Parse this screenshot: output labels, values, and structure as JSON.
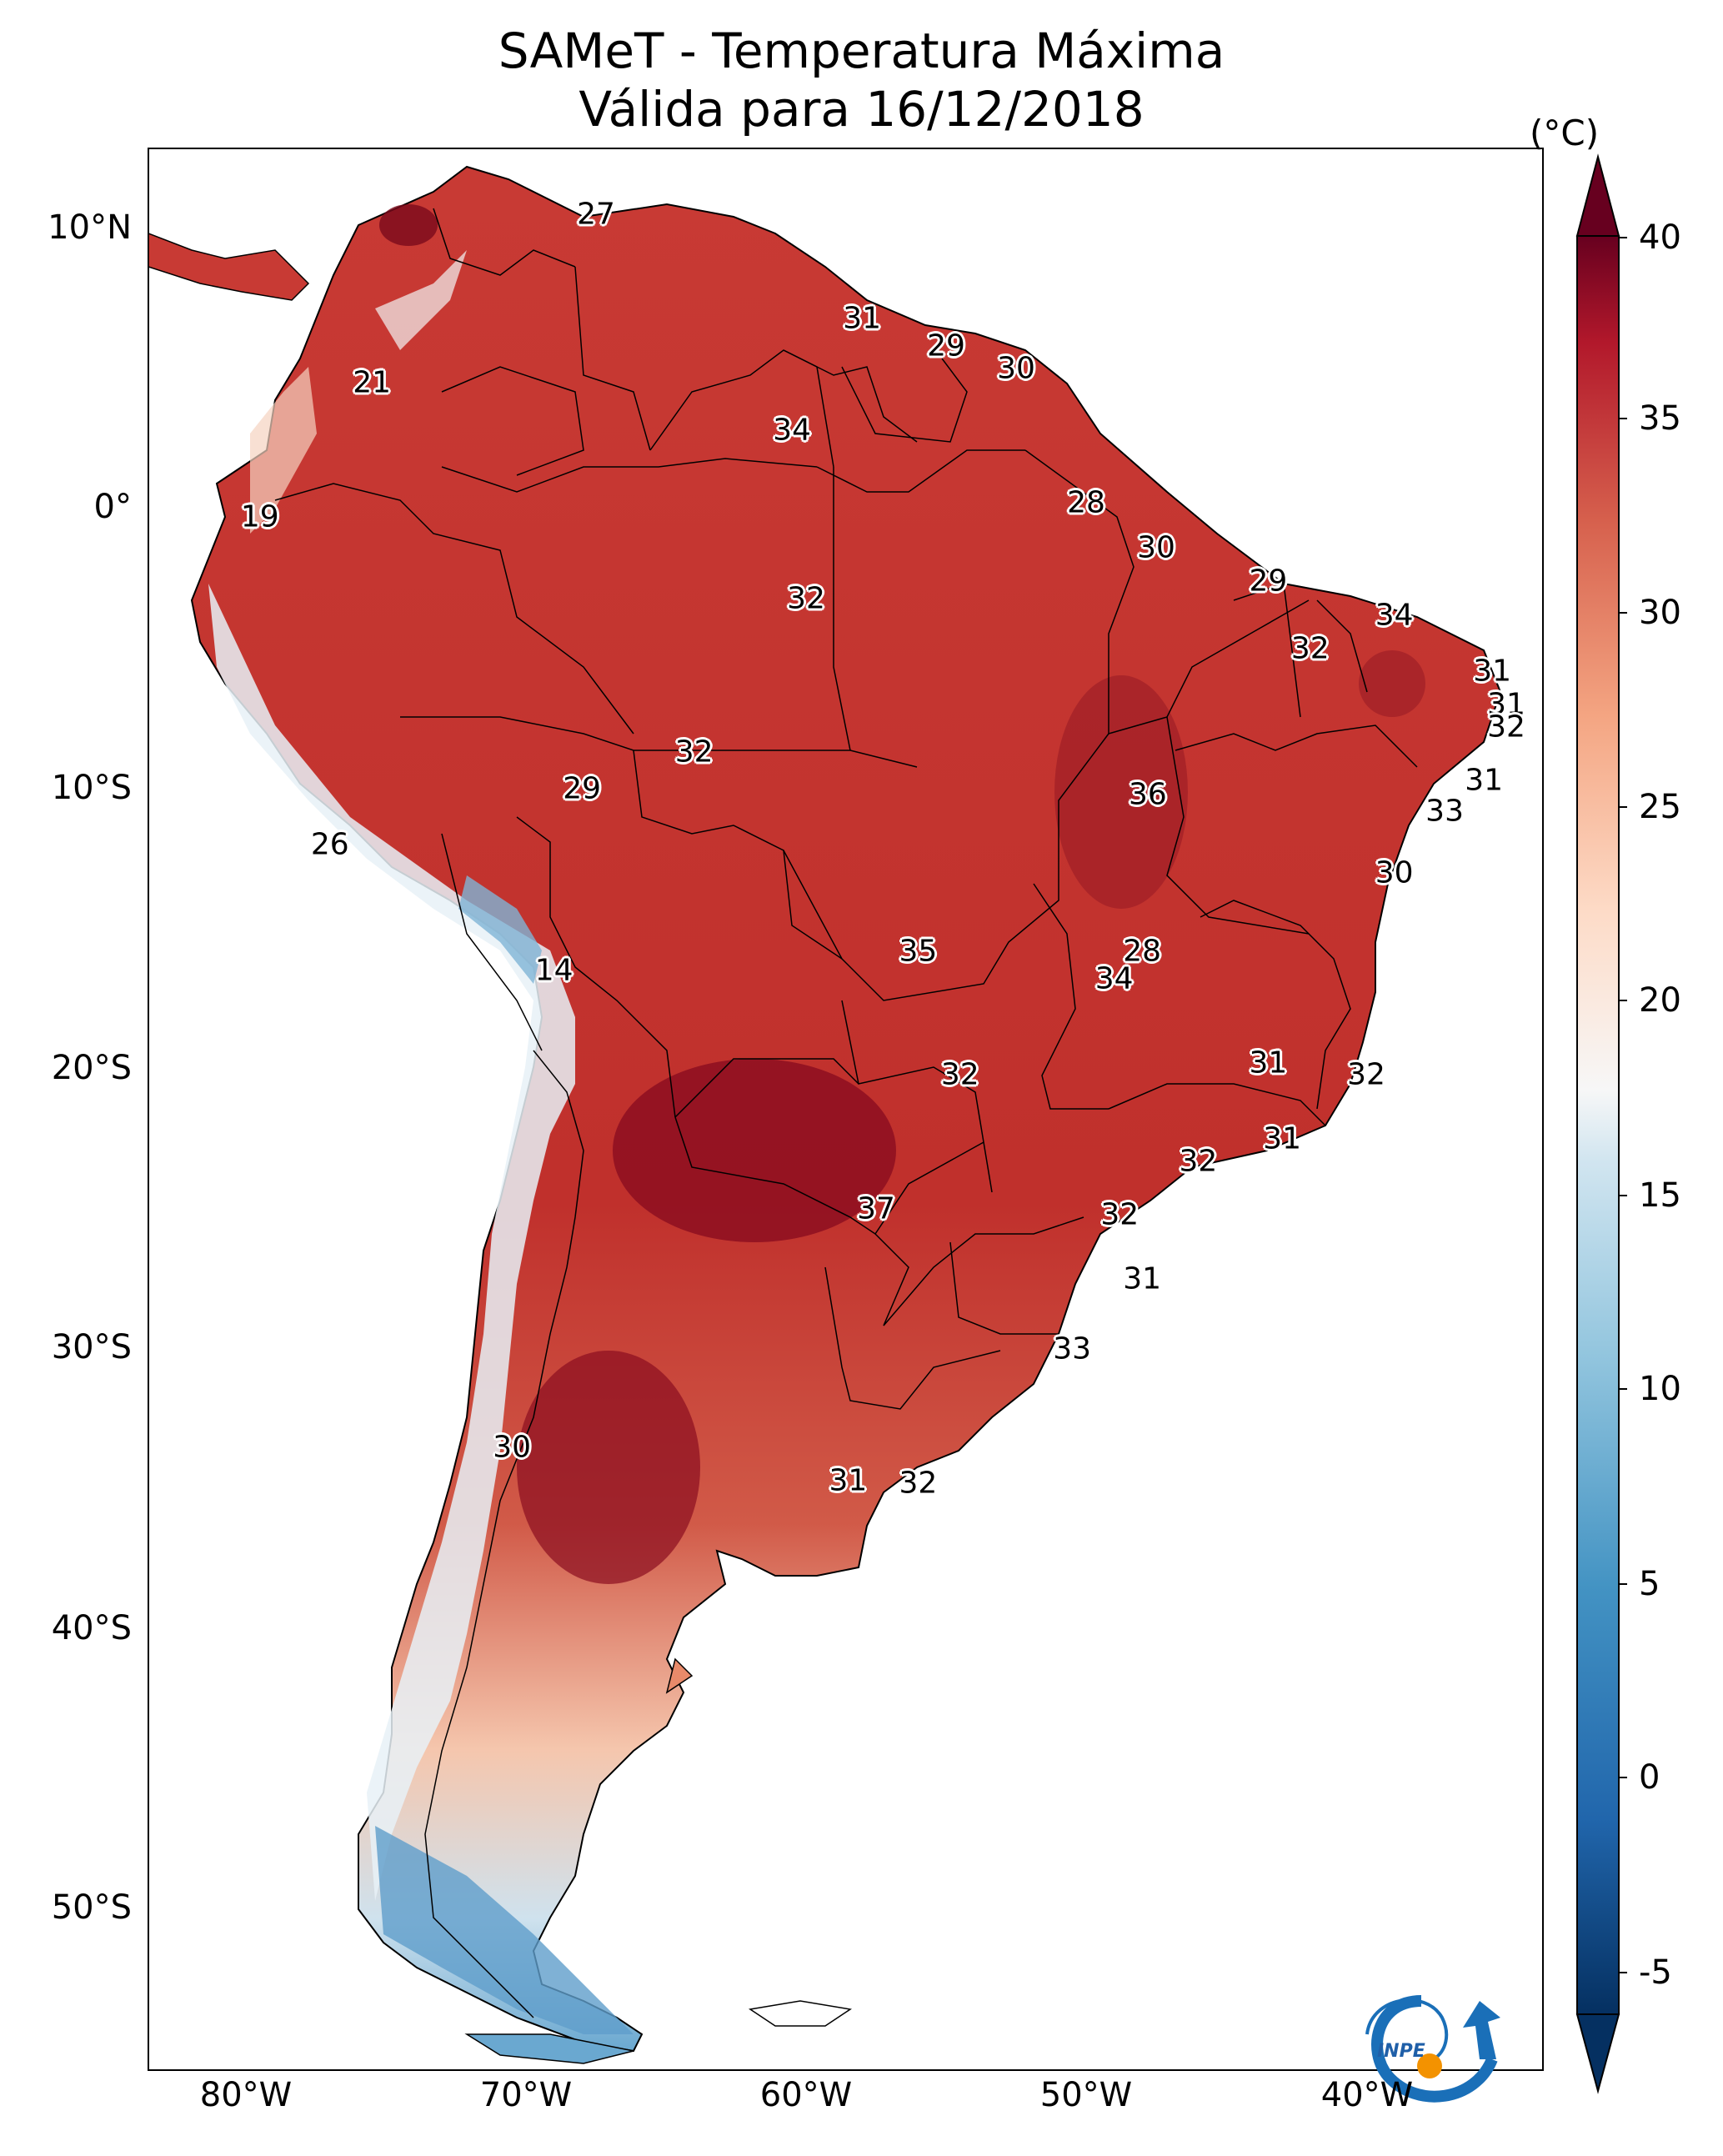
{
  "title": "SAMeT - Temperatura Máxima",
  "subtitle": "Válida para 16/12/2018",
  "colorbar": {
    "unit": "(°C)",
    "ticks": [
      "40",
      "35",
      "30",
      "25",
      "20",
      "15",
      "10",
      "5",
      "0",
      "-5"
    ],
    "range": [
      -5,
      40
    ]
  },
  "axes": {
    "lat_labels": [
      "10°N",
      "0°",
      "10°S",
      "20°S",
      "30°S",
      "40°S",
      "50°S"
    ],
    "lon_labels": [
      "80°W",
      "70°W",
      "60°W",
      "50°W",
      "40°W"
    ]
  },
  "map_values": [
    {
      "label": "27",
      "lon": -67.5,
      "lat": 10.5
    },
    {
      "label": "21",
      "lon": -75.5,
      "lat": 4.5
    },
    {
      "label": "19",
      "lon": -79.5,
      "lat": -0.3
    },
    {
      "label": "31",
      "lon": -58.0,
      "lat": 6.8
    },
    {
      "label": "29",
      "lon": -55.0,
      "lat": 5.8
    },
    {
      "label": "30",
      "lon": -52.5,
      "lat": 5.0
    },
    {
      "label": "34",
      "lon": -60.5,
      "lat": 2.8
    },
    {
      "label": "28",
      "lon": -50.0,
      "lat": 0.2
    },
    {
      "label": "30",
      "lon": -47.5,
      "lat": -1.4
    },
    {
      "label": "29",
      "lon": -43.5,
      "lat": -2.6
    },
    {
      "label": "34",
      "lon": -39.0,
      "lat": -3.8
    },
    {
      "label": "32",
      "lon": -60.0,
      "lat": -3.2
    },
    {
      "label": "32",
      "lon": -42.0,
      "lat": -5.0
    },
    {
      "label": "31",
      "lon": -35.5,
      "lat": -5.8
    },
    {
      "label": "31",
      "lon": -35.0,
      "lat": -7.0
    },
    {
      "label": "32",
      "lon": -35.0,
      "lat": -7.8
    },
    {
      "label": "32",
      "lon": -64.0,
      "lat": -8.7
    },
    {
      "label": "29",
      "lon": -68.0,
      "lat": -10.0
    },
    {
      "label": "36",
      "lon": -47.8,
      "lat": -10.2
    },
    {
      "label": "31",
      "lon": -35.8,
      "lat": -9.7
    },
    {
      "label": "33",
      "lon": -37.2,
      "lat": -10.8
    },
    {
      "label": "30",
      "lon": -39.0,
      "lat": -13.0
    },
    {
      "label": "26",
      "lon": -77.0,
      "lat": -12.0
    },
    {
      "label": "14",
      "lon": -69.0,
      "lat": -16.5
    },
    {
      "label": "35",
      "lon": -56.0,
      "lat": -15.8
    },
    {
      "label": "28",
      "lon": -48.0,
      "lat": -15.8
    },
    {
      "label": "34",
      "lon": -49.0,
      "lat": -16.8
    },
    {
      "label": "32",
      "lon": -54.5,
      "lat": -20.2
    },
    {
      "label": "31",
      "lon": -43.5,
      "lat": -19.8
    },
    {
      "label": "32",
      "lon": -40.0,
      "lat": -20.2
    },
    {
      "label": "31",
      "lon": -43.0,
      "lat": -22.5
    },
    {
      "label": "32",
      "lon": -46.0,
      "lat": -23.3
    },
    {
      "label": "37",
      "lon": -57.5,
      "lat": -25.0
    },
    {
      "label": "32",
      "lon": -48.8,
      "lat": -25.2
    },
    {
      "label": "31",
      "lon": -48.0,
      "lat": -27.5
    },
    {
      "label": "33",
      "lon": -50.5,
      "lat": -30.0
    },
    {
      "label": "30",
      "lon": -70.5,
      "lat": -33.5
    },
    {
      "label": "31",
      "lon": -58.5,
      "lat": -34.7
    },
    {
      "label": "32",
      "lon": -56.0,
      "lat": -34.8
    }
  ],
  "logo_text": "INPE"
}
